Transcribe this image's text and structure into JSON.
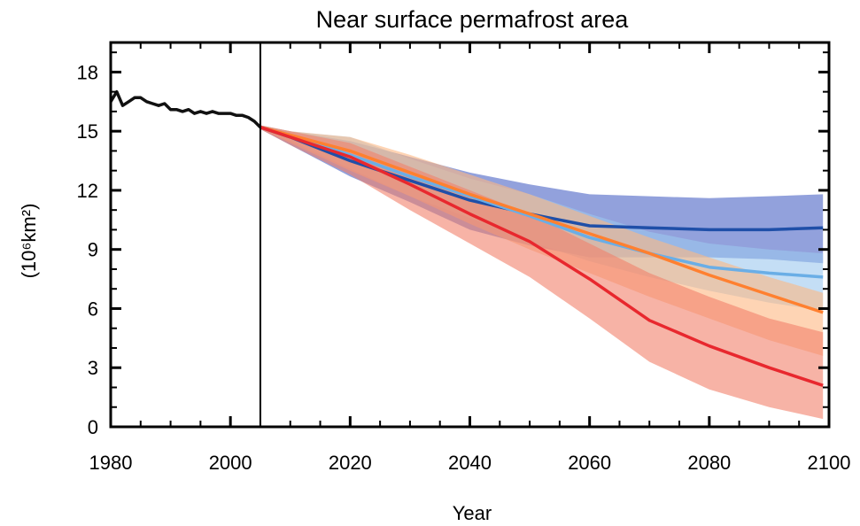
{
  "chart_data": {
    "type": "line",
    "title": "Near surface permafrost area",
    "xlabel": "Year",
    "ylabel": "(10⁶km²)",
    "xlim": [
      1980,
      2100
    ],
    "ylim": [
      0,
      19.5
    ],
    "xticks": [
      1980,
      2000,
      2020,
      2040,
      2060,
      2080,
      2100
    ],
    "yticks": [
      0,
      3,
      6,
      9,
      12,
      15,
      18
    ],
    "vline_x": 2005,
    "grid": false,
    "historical": {
      "color": "#111111",
      "x": [
        1980,
        1981,
        1982,
        1983,
        1984,
        1985,
        1986,
        1987,
        1988,
        1989,
        1990,
        1991,
        1992,
        1993,
        1994,
        1995,
        1996,
        1997,
        1998,
        1999,
        2000,
        2001,
        2002,
        2003,
        2004,
        2005
      ],
      "y": [
        16.5,
        17.0,
        16.3,
        16.5,
        16.7,
        16.7,
        16.5,
        16.4,
        16.3,
        16.4,
        16.1,
        16.1,
        16.0,
        16.1,
        15.9,
        16.0,
        15.9,
        16.0,
        15.9,
        15.9,
        15.9,
        15.8,
        15.8,
        15.7,
        15.5,
        15.2
      ]
    },
    "series": [
      {
        "color": "#1f4fa8",
        "band_color": "#4a62c4",
        "band_opacity": 0.6,
        "x": [
          2005,
          2010,
          2020,
          2030,
          2040,
          2050,
          2060,
          2070,
          2080,
          2090,
          2099
        ],
        "y": [
          15.2,
          14.7,
          13.5,
          12.5,
          11.5,
          10.8,
          10.2,
          10.1,
          10.0,
          10.0,
          10.1
        ],
        "lower": [
          15.1,
          14.3,
          12.7,
          11.4,
          10.0,
          9.2,
          8.6,
          8.6,
          8.6,
          8.5,
          8.3
        ],
        "upper": [
          15.3,
          15.0,
          14.5,
          13.7,
          12.9,
          12.3,
          11.8,
          11.7,
          11.6,
          11.7,
          11.8
        ]
      },
      {
        "color": "#6aaee6",
        "band_color": "#9cc8ee",
        "band_opacity": 0.6,
        "x": [
          2005,
          2010,
          2020,
          2030,
          2040,
          2050,
          2060,
          2070,
          2080,
          2090,
          2099
        ],
        "y": [
          15.2,
          14.8,
          13.8,
          12.7,
          11.7,
          10.7,
          9.6,
          8.8,
          8.1,
          7.8,
          7.6
        ],
        "lower": [
          15.1,
          14.5,
          13.1,
          11.7,
          10.6,
          9.4,
          8.4,
          7.6,
          6.9,
          6.3,
          5.9
        ],
        "upper": [
          15.3,
          15.0,
          14.7,
          13.6,
          12.6,
          11.8,
          10.8,
          9.9,
          9.3,
          9.0,
          8.8
        ]
      },
      {
        "color": "#ff8030",
        "band_color": "#fdb882",
        "band_opacity": 0.6,
        "x": [
          2005,
          2010,
          2020,
          2030,
          2040,
          2050,
          2060,
          2070,
          2080,
          2090,
          2099
        ],
        "y": [
          15.2,
          14.8,
          14.0,
          12.9,
          11.8,
          10.8,
          9.8,
          8.8,
          7.7,
          6.7,
          5.8
        ],
        "lower": [
          15.1,
          14.4,
          13.0,
          11.7,
          10.3,
          9.0,
          7.8,
          6.6,
          5.5,
          4.4,
          3.6
        ],
        "upper": [
          15.3,
          15.0,
          14.7,
          13.8,
          12.8,
          11.8,
          10.7,
          9.6,
          8.6,
          7.6,
          6.8
        ]
      },
      {
        "color": "#e8282e",
        "band_color": "#f2806a",
        "band_opacity": 0.6,
        "x": [
          2005,
          2010,
          2020,
          2030,
          2040,
          2050,
          2060,
          2070,
          2080,
          2090,
          2099
        ],
        "y": [
          15.2,
          14.7,
          13.7,
          12.3,
          10.8,
          9.4,
          7.5,
          5.4,
          4.1,
          3.0,
          2.1
        ],
        "lower": [
          15.1,
          14.3,
          12.8,
          11.0,
          9.3,
          7.6,
          5.5,
          3.3,
          1.9,
          1.0,
          0.4
        ],
        "upper": [
          15.3,
          15.0,
          14.4,
          13.2,
          12.0,
          10.8,
          9.3,
          7.8,
          6.6,
          5.5,
          4.8
        ]
      }
    ]
  }
}
